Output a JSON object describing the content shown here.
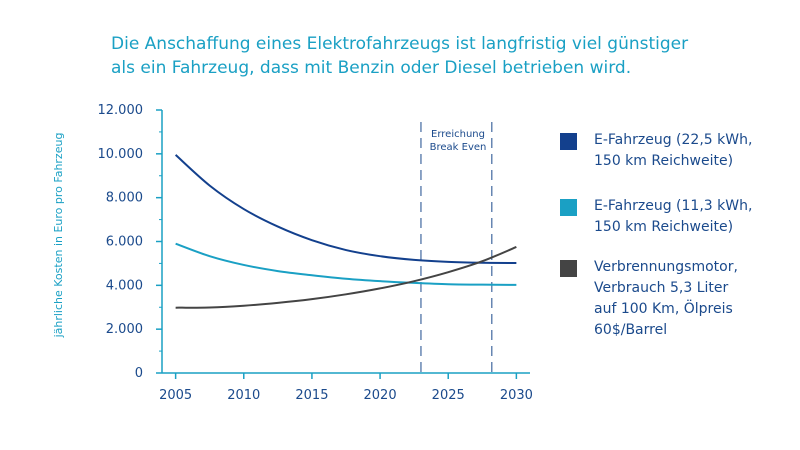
{
  "chart_data": {
    "type": "line",
    "title_lines": [
      "Die Anschaffung eines Elektrofahrzeugs ist langfristig viel günstiger",
      "als ein Fahrzeug, dass mit Benzin oder Diesel betrieben wird."
    ],
    "ylabel": "jährliche Kosten in Euro pro Fahrzeug",
    "xlabel": "",
    "x_ticks": [
      2005,
      2010,
      2015,
      2020,
      2025,
      2030
    ],
    "y_ticks": [
      0,
      2000,
      4000,
      6000,
      8000,
      10000,
      12000
    ],
    "y_tick_labels": [
      "0",
      "2.000",
      "4.000",
      "6.000",
      "8.000",
      "10.000",
      "12.000"
    ],
    "xlim": [
      2004,
      2031
    ],
    "ylim": [
      0,
      12000
    ],
    "grid": false,
    "legend_position": "right",
    "x": [
      2005,
      2007.5,
      2010,
      2012.5,
      2015,
      2017.5,
      2020,
      2022.5,
      2025,
      2027.5,
      2030
    ],
    "series": [
      {
        "name": "E-Fahrzeug (22,5 kWh,\n150 km Reichweite)",
        "color": "#13408d",
        "values": [
          9950,
          8550,
          7480,
          6680,
          6060,
          5610,
          5330,
          5160,
          5070,
          5030,
          5020
        ]
      },
      {
        "name": "E-Fahrzeug (11,3 kWh,\n150 km Reichweite)",
        "color": "#1aa0c4",
        "values": [
          5900,
          5330,
          4930,
          4650,
          4460,
          4300,
          4190,
          4110,
          4050,
          4030,
          4020
        ]
      },
      {
        "name": "Verbrennungsmotor,\nVerbrauch 5,3 Liter\nauf 100 Km, Ölpreis\n60$/Barrel",
        "color": "#444444",
        "values": [
          2980,
          2990,
          3070,
          3200,
          3370,
          3590,
          3860,
          4190,
          4600,
          5100,
          5750
        ]
      }
    ],
    "annotations": [
      {
        "text_lines": [
          "Erreichung",
          "Break Even"
        ],
        "x_range": [
          2023,
          2028.2
        ]
      }
    ],
    "vlines": [
      2023,
      2028.2
    ]
  }
}
